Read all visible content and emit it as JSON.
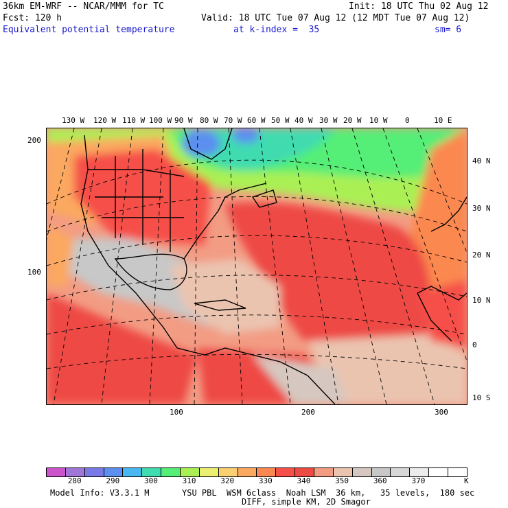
{
  "header": {
    "model_line": "36km EM-WRF -- NCAR/MMM for TC",
    "init_line": "Init: 18 UTC Thu 02 Aug 12",
    "fcst_line": "Fcst: 120 h",
    "valid_line": "Valid: 18 UTC Tue 07 Aug 12 (12 MDT Tue 07 Aug 12)",
    "field_name": "Equivalent potential temperature",
    "level": "at k-index =  35",
    "smoothing": "sm= 6"
  },
  "map": {
    "top_longitude_labels": [
      "130 W",
      "120 W",
      "110 W",
      "100 W",
      "90 W",
      "80 W",
      "70 W",
      "60 W",
      "50 W",
      "40 W",
      "30 W",
      "20 W",
      "10 W",
      "0",
      "10 E"
    ],
    "right_latitude_labels": [
      "40 N",
      "30 N",
      "20 N",
      "10 N",
      "0",
      "10 S"
    ],
    "left_grid_labels": [
      "200",
      "100"
    ],
    "bottom_grid_labels": [
      "100",
      "200",
      "300"
    ]
  },
  "colorbar": {
    "colors": [
      "#cc55cc",
      "#a077d9",
      "#7a7ae6",
      "#5c8ff0",
      "#49b8f0",
      "#3fdcb0",
      "#55ee77",
      "#aaf055",
      "#ecf070",
      "#fbd073",
      "#fba860",
      "#fb8850",
      "#f6504a",
      "#ee4a44",
      "#f39c84",
      "#ebc4b0",
      "#d6c8c0",
      "#c8c8c8",
      "#d8d8d8",
      "#ececec",
      "#ffffff",
      "#ffffff"
    ],
    "labels": [
      "280",
      "290",
      "300",
      "310",
      "320",
      "330",
      "340",
      "350",
      "360",
      "370"
    ],
    "unit": "K"
  },
  "footer": {
    "model_info": "Model Info: V3.3.1 M",
    "physics_line": "YSU PBL  WSM 6class  Noah LSM  36 km,   35 levels,  180 sec",
    "diff_line": "DIFF, simple KM, 2D Smagor"
  }
}
